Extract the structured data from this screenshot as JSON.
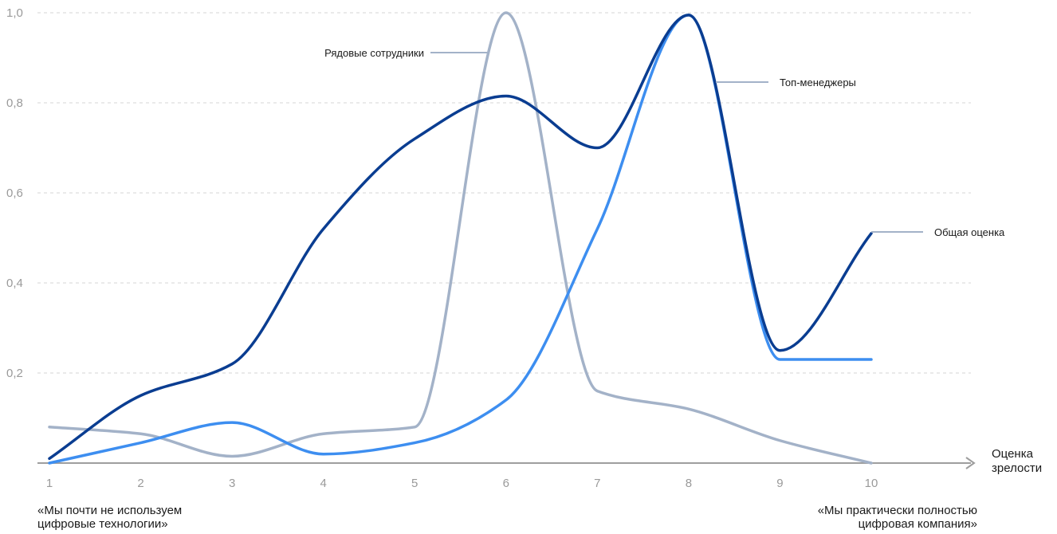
{
  "chart_data": {
    "type": "line",
    "x": [
      1,
      2,
      3,
      4,
      5,
      6,
      7,
      8,
      9,
      10
    ],
    "xlim": [
      1,
      10
    ],
    "ylim": [
      0,
      1
    ],
    "y_ticks": [
      "1,0",
      "0,8",
      "0,6",
      "0,4",
      "0,2"
    ],
    "x_ticks": [
      "1",
      "2",
      "3",
      "4",
      "5",
      "6",
      "7",
      "8",
      "9",
      "10"
    ],
    "xlabel": "Оценка\nзрелости",
    "ylabel": "",
    "grid": true,
    "series": [
      {
        "name": "Рядовые сотрудники",
        "color": "#a3b2c8",
        "values": [
          0.08,
          0.065,
          0.015,
          0.065,
          0.08,
          1.0,
          0.16,
          0.12,
          0.05,
          0.0
        ]
      },
      {
        "name": "Топ-менеджеры",
        "color": "#3d8ef0",
        "values": [
          0.0,
          0.045,
          0.09,
          0.02,
          0.045,
          0.14,
          0.52,
          0.995,
          0.23,
          0.23
        ]
      },
      {
        "name": "Общая оценка",
        "color": "#0a3d91",
        "values": [
          0.01,
          0.15,
          0.22,
          0.52,
          0.72,
          0.815,
          0.7,
          0.995,
          0.25,
          0.51
        ]
      }
    ],
    "annotations": {
      "left_caption": "«Мы почти не используем\nцифровые технологии»",
      "right_caption": "«Мы практически полностью\nцифровая компания»"
    }
  }
}
